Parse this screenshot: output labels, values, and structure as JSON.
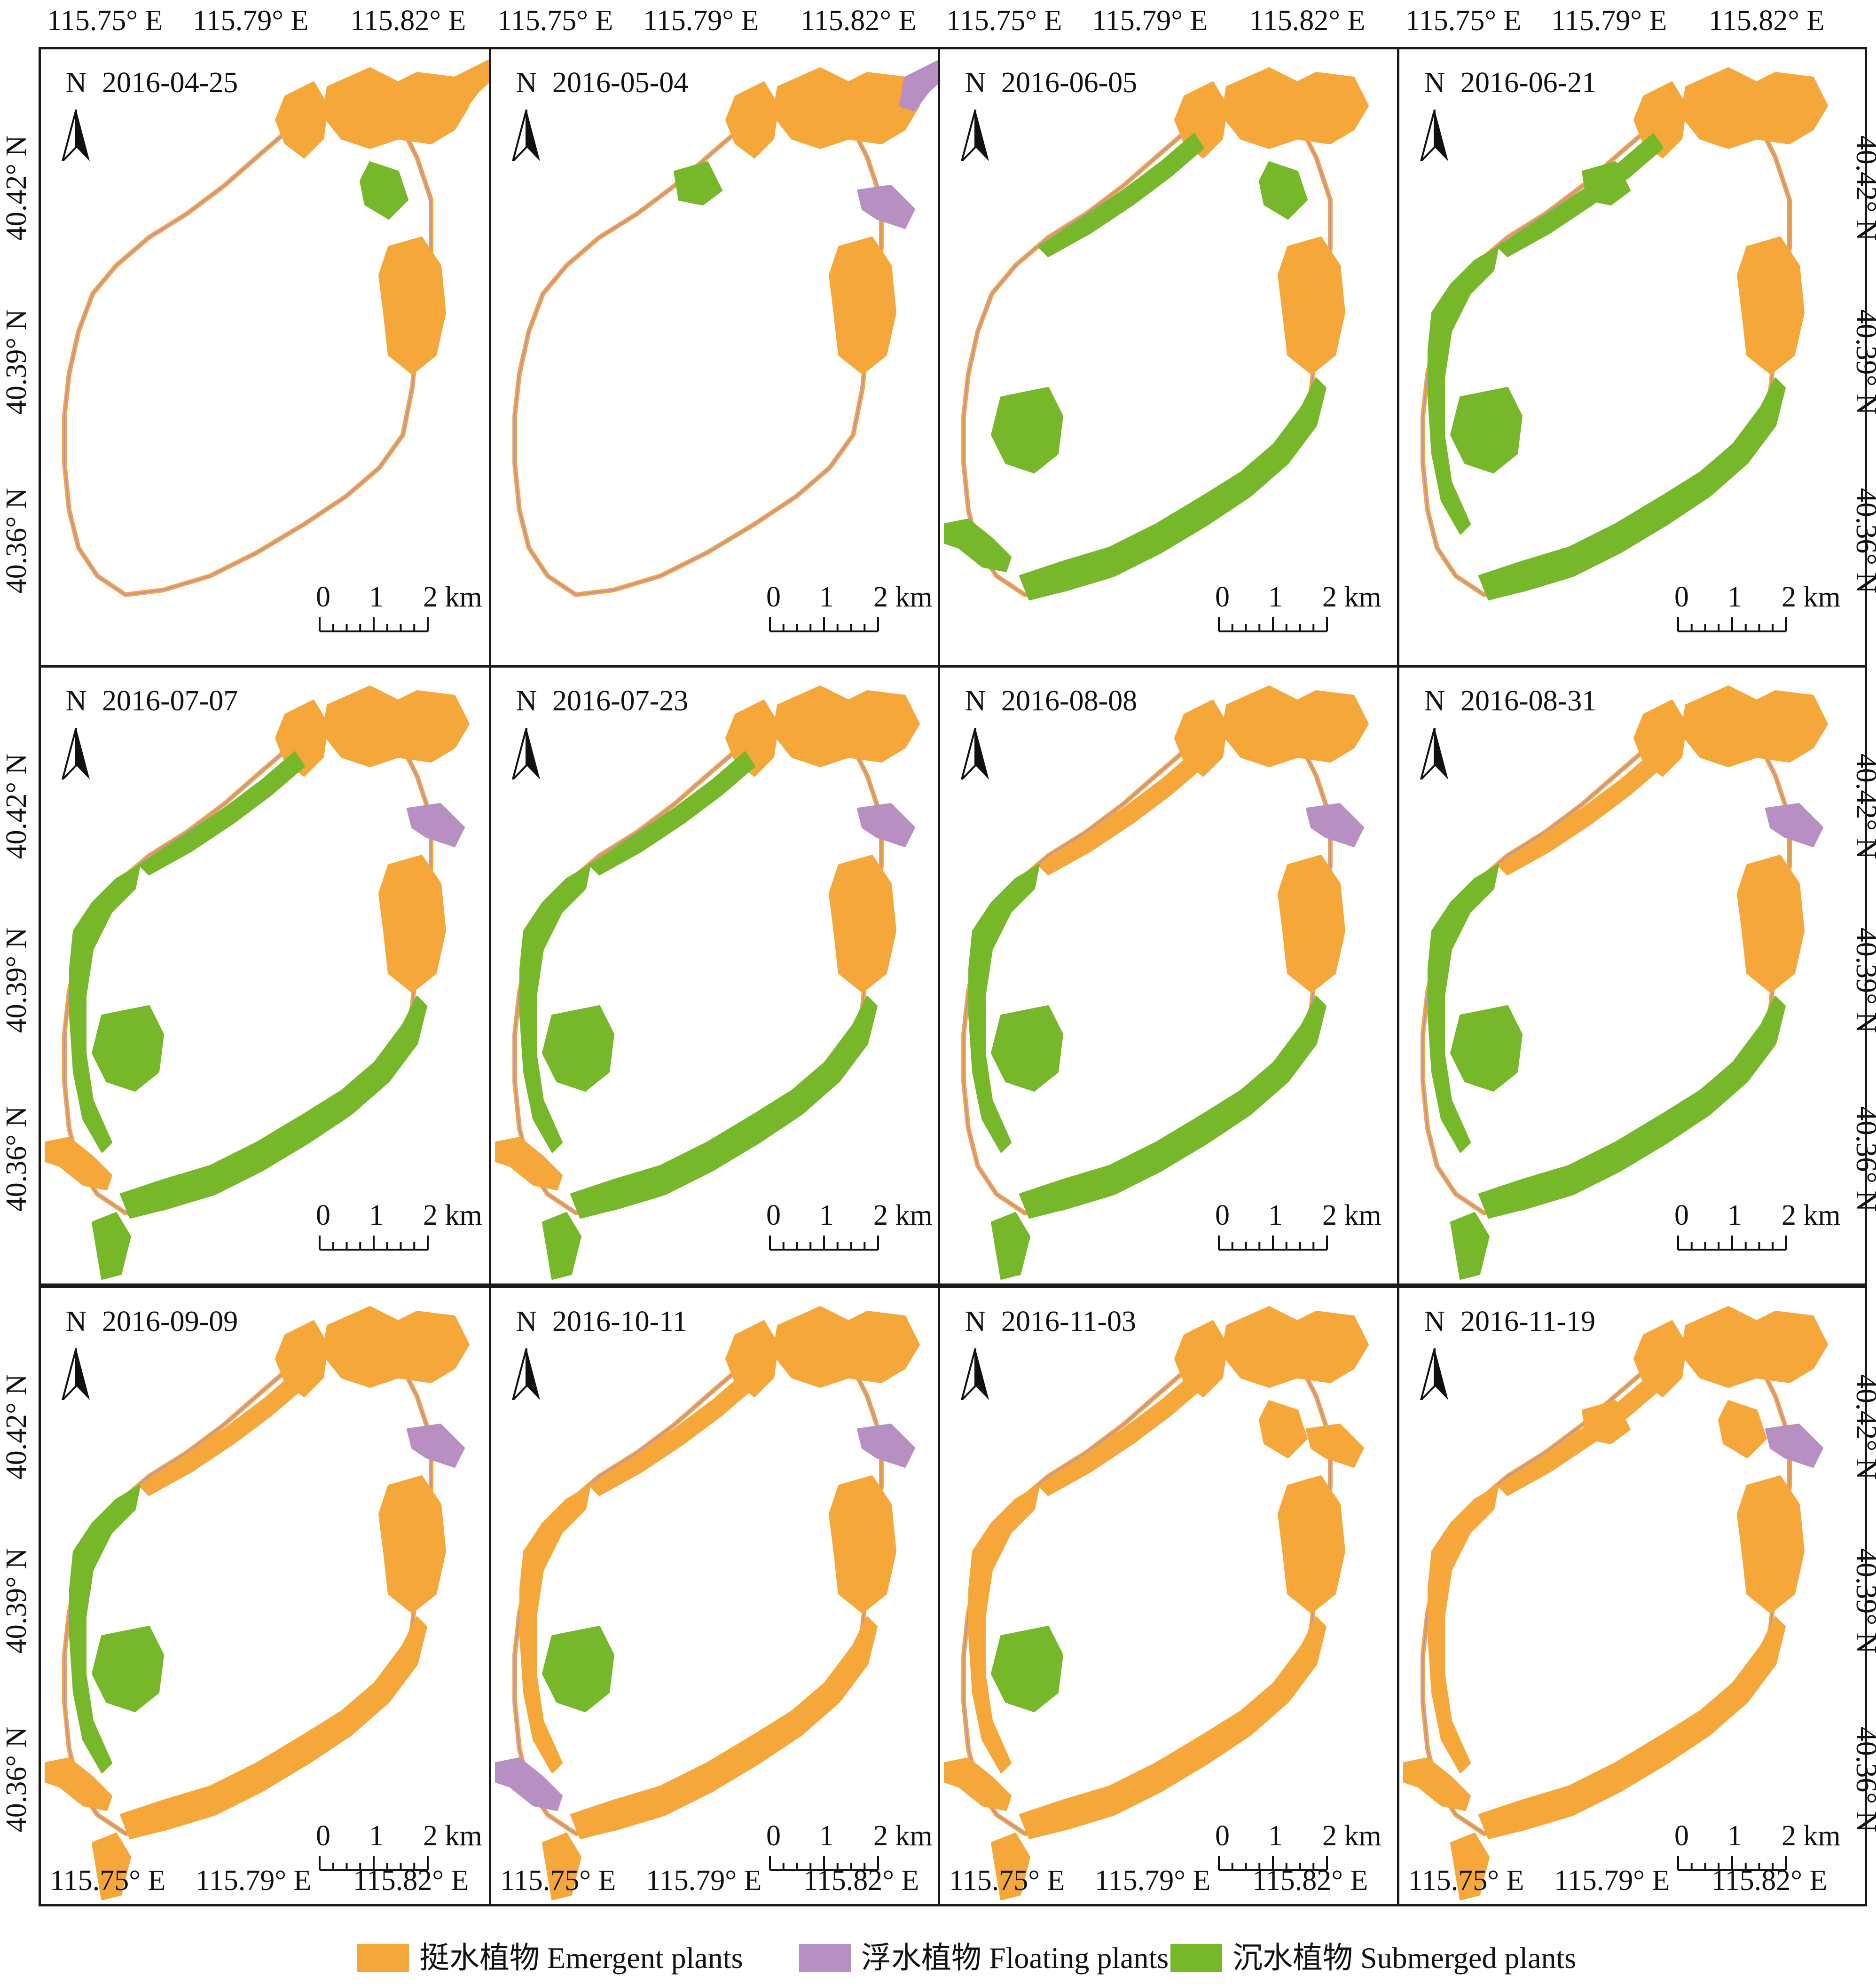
{
  "figure": {
    "panels": [
      {
        "date": "2016-04-25",
        "row": 0,
        "col": 0,
        "stage": 0
      },
      {
        "date": "2016-05-04",
        "row": 0,
        "col": 1,
        "stage": 1
      },
      {
        "date": "2016-06-05",
        "row": 0,
        "col": 2,
        "stage": 2
      },
      {
        "date": "2016-06-21",
        "row": 0,
        "col": 3,
        "stage": 3
      },
      {
        "date": "2016-07-07",
        "row": 1,
        "col": 0,
        "stage": 4
      },
      {
        "date": "2016-07-23",
        "row": 1,
        "col": 1,
        "stage": 4
      },
      {
        "date": "2016-08-08",
        "row": 1,
        "col": 2,
        "stage": 5
      },
      {
        "date": "2016-08-31",
        "row": 1,
        "col": 3,
        "stage": 5
      },
      {
        "date": "2016-09-09",
        "row": 2,
        "col": 0,
        "stage": 6
      },
      {
        "date": "2016-10-11",
        "row": 2,
        "col": 1,
        "stage": 7
      },
      {
        "date": "2016-11-03",
        "row": 2,
        "col": 2,
        "stage": 8
      },
      {
        "date": "2016-11-19",
        "row": 2,
        "col": 3,
        "stage": 9
      }
    ],
    "north_label": "N",
    "scale": {
      "labels": [
        "0",
        "1",
        "2 km"
      ]
    },
    "lon_ticks": [
      "115.75° E",
      "115.79° E",
      "115.82° E"
    ],
    "lat_ticks": [
      "40.42° N",
      "40.39° N",
      "40.36° N"
    ],
    "legend": [
      {
        "label": "挺水植物 Emergent plants",
        "color": "#F5A73A",
        "icon": "orange-swatch"
      },
      {
        "label": "浮水植物 Floating plants",
        "color": "#B88FC3",
        "icon": "purple-swatch"
      },
      {
        "label": "沉水植物 Submerged plants",
        "color": "#76B82A",
        "icon": "green-swatch"
      }
    ],
    "colors": {
      "emergent": "#F5A73A",
      "floating": "#B88FC3",
      "submerged": "#76B82A",
      "frame": "#1a1a1a"
    }
  }
}
